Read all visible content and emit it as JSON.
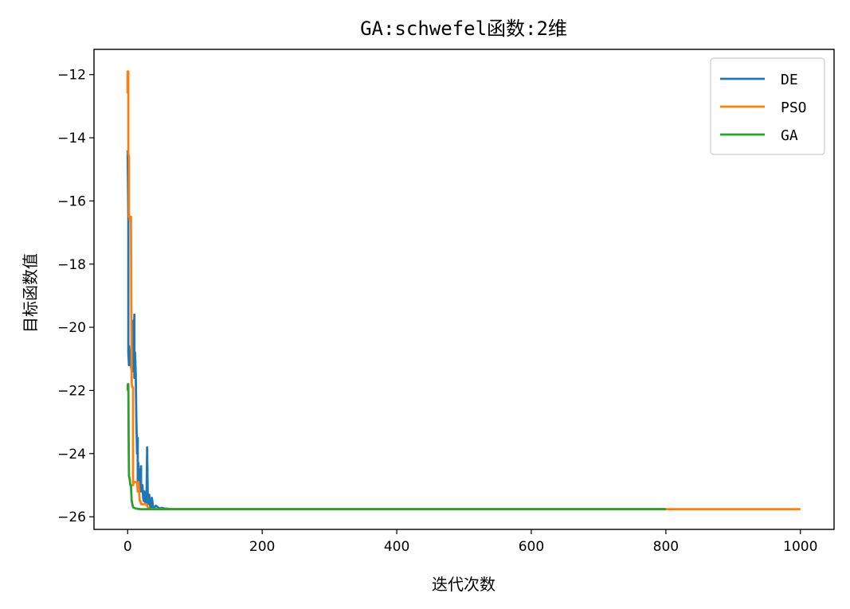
{
  "chart_data": {
    "type": "line",
    "title": "GA:schwefel函数:2维",
    "xlabel": "迭代次数",
    "ylabel": "目标函数值",
    "xlim": [
      -50,
      1050
    ],
    "ylim": [
      -26.4,
      -11.2
    ],
    "xticks": [
      0,
      200,
      400,
      600,
      800,
      1000
    ],
    "xtick_labels": [
      "0",
      "200",
      "400",
      "600",
      "800",
      "1000"
    ],
    "yticks": [
      -26,
      -24,
      -22,
      -20,
      -18,
      -16,
      -14,
      -12
    ],
    "ytick_labels": [
      "−26",
      "−24",
      "−22",
      "−20",
      "−18",
      "−16",
      "−14",
      "−12"
    ],
    "grid": false,
    "legend_position": "top-right",
    "series": [
      {
        "name": "DE",
        "color": "#1f77b4",
        "x": [
          0,
          1,
          1,
          2,
          2,
          3,
          4,
          5,
          6,
          7,
          8,
          9,
          10,
          10,
          11,
          12,
          13,
          14,
          15,
          15,
          16,
          17,
          18,
          19,
          20,
          20,
          21,
          22,
          23,
          24,
          25,
          26,
          27,
          28,
          29,
          30,
          31,
          32,
          33,
          34,
          35,
          36,
          38,
          40,
          42,
          45,
          48,
          50,
          55,
          60,
          65,
          70,
          80,
          100,
          200,
          400,
          600,
          800
        ],
        "y": [
          -14.4,
          -16.5,
          -20.8,
          -21.2,
          -20.6,
          -20.8,
          -21.0,
          -21.2,
          -21.4,
          -21.4,
          -19.8,
          -20.5,
          -19.6,
          -21.6,
          -20.8,
          -21.5,
          -23.0,
          -24.0,
          -23.5,
          -25.0,
          -24.3,
          -25.2,
          -24.5,
          -25.0,
          -24.4,
          -25.2,
          -25.1,
          -25.0,
          -25.4,
          -25.5,
          -25.2,
          -25.5,
          -25.6,
          -25.6,
          -23.8,
          -25.6,
          -25.5,
          -25.3,
          -25.6,
          -25.7,
          -25.7,
          -25.4,
          -25.7,
          -25.7,
          -25.65,
          -25.7,
          -25.75,
          -25.72,
          -25.74,
          -25.75,
          -25.76,
          -25.76,
          -25.76,
          -25.76,
          -25.76,
          -25.76,
          -25.76,
          -25.76
        ]
      },
      {
        "name": "PSO",
        "color": "#ff7f0e",
        "x": [
          0,
          0,
          1,
          1,
          2,
          2,
          3,
          3,
          4,
          5,
          6,
          7,
          8,
          8,
          9,
          10,
          12,
          14,
          15,
          16,
          18,
          19,
          20,
          22,
          24,
          26,
          28,
          30,
          32,
          35,
          40,
          50,
          60,
          80,
          100,
          200,
          400,
          600,
          800,
          1000
        ],
        "y": [
          -12.6,
          -11.9,
          -11.9,
          -14.5,
          -14.6,
          -16.5,
          -16.5,
          -16.6,
          -16.5,
          -16.5,
          -21.8,
          -21.9,
          -21.9,
          -25.0,
          -24.9,
          -24.9,
          -24.9,
          -24.9,
          -25.2,
          -24.9,
          -25.5,
          -25.5,
          -25.6,
          -25.6,
          -25.6,
          -25.6,
          -25.6,
          -25.7,
          -25.75,
          -25.76,
          -25.76,
          -25.76,
          -25.76,
          -25.76,
          -25.76,
          -25.76,
          -25.76,
          -25.76,
          -25.76,
          -25.76
        ]
      },
      {
        "name": "GA",
        "color": "#2ca02c",
        "x": [
          0,
          0.3,
          0.6,
          1,
          1.5,
          2,
          3,
          4,
          5,
          6,
          8,
          10,
          12,
          15,
          20,
          30,
          40,
          60,
          100,
          200,
          400,
          600,
          800
        ],
        "y": [
          -22.0,
          -21.8,
          -22.0,
          -21.8,
          -23.5,
          -24.7,
          -24.8,
          -25.0,
          -25.0,
          -25.5,
          -25.7,
          -25.72,
          -25.74,
          -25.75,
          -25.76,
          -25.76,
          -25.76,
          -25.76,
          -25.76,
          -25.76,
          -25.76,
          -25.76,
          -25.76
        ]
      }
    ]
  }
}
